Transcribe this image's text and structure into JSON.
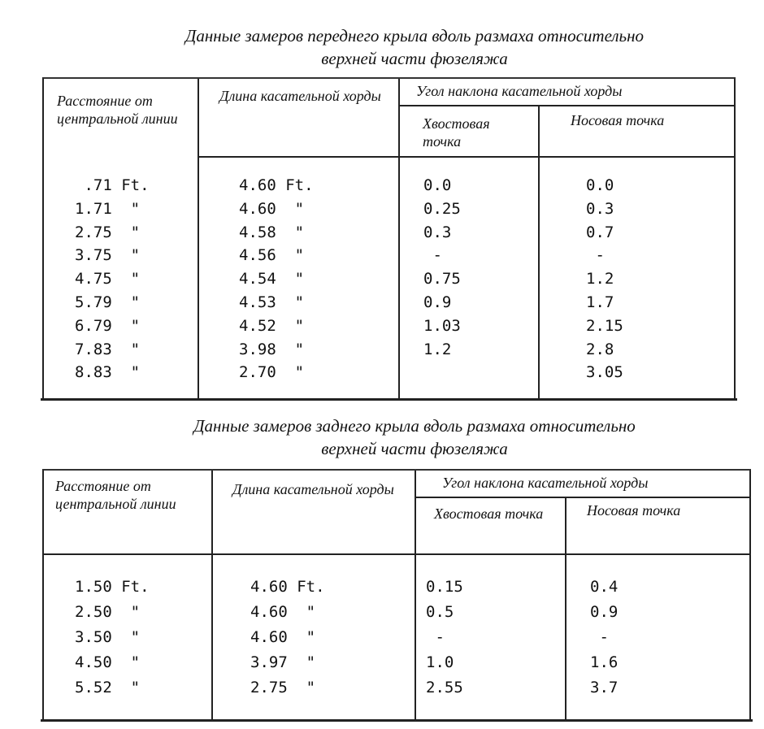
{
  "front": {
    "title_line1": "Данные замеров переднего крыла вдоль размаха относительно",
    "title_line2": "верхней части фюзеляжа",
    "headers": {
      "distance": "Расстояние от центральной линии",
      "chord_length": "Длина касательной хорды",
      "angle_group": "Угол наклона касательной хорды",
      "tail_point": "Хвостовая точка",
      "nose_point": "Носовая точка"
    },
    "rows": [
      {
        "distance": " .71 Ft.",
        "chord": "4.60 Ft.",
        "tail": "0.0",
        "nose": "0.0"
      },
      {
        "distance": "1.71  \"",
        "chord": "4.60  \"",
        "tail": "0.25",
        "nose": "0.3"
      },
      {
        "distance": "2.75  \"",
        "chord": "4.58  \"",
        "tail": "0.3",
        "nose": "0.7"
      },
      {
        "distance": "3.75  \"",
        "chord": "4.56  \"",
        "tail": " -",
        "nose": " -"
      },
      {
        "distance": "4.75  \"",
        "chord": "4.54  \"",
        "tail": "0.75",
        "nose": "1.2"
      },
      {
        "distance": "5.79  \"",
        "chord": "4.53  \"",
        "tail": "0.9",
        "nose": "1.7"
      },
      {
        "distance": "6.79  \"",
        "chord": "4.52  \"",
        "tail": "1.03",
        "nose": "2.15"
      },
      {
        "distance": "7.83  \"",
        "chord": "3.98  \"",
        "tail": "1.2",
        "nose": "2.8"
      },
      {
        "distance": "8.83  \"",
        "chord": "2.70  \"",
        "tail": "",
        "nose": "3.05"
      }
    ]
  },
  "rear": {
    "title_line1": "Данные замеров заднего крыла вдоль размаха относительно",
    "title_line2": "верхней части фюзеляжа",
    "headers": {
      "distance": "Расстояние от центральной линии",
      "chord_length": "Длина касательной хорды",
      "angle_group": "Угол наклона касательной хорды",
      "tail_point": "Хвостовая точка",
      "nose_point": "Носовая точка"
    },
    "rows": [
      {
        "distance": "1.50 Ft.",
        "chord": "4.60 Ft.",
        "tail": "0.15",
        "nose": "0.4"
      },
      {
        "distance": "2.50  \"",
        "chord": "4.60  \"",
        "tail": "0.5",
        "nose": "0.9"
      },
      {
        "distance": "3.50  \"",
        "chord": "4.60  \"",
        "tail": " -",
        "nose": " -"
      },
      {
        "distance": "4.50  \"",
        "chord": "3.97  \"",
        "tail": "1.0",
        "nose": "1.6"
      },
      {
        "distance": "5.52  \"",
        "chord": "2.75  \"",
        "tail": "2.55",
        "nose": "3.7"
      }
    ]
  }
}
